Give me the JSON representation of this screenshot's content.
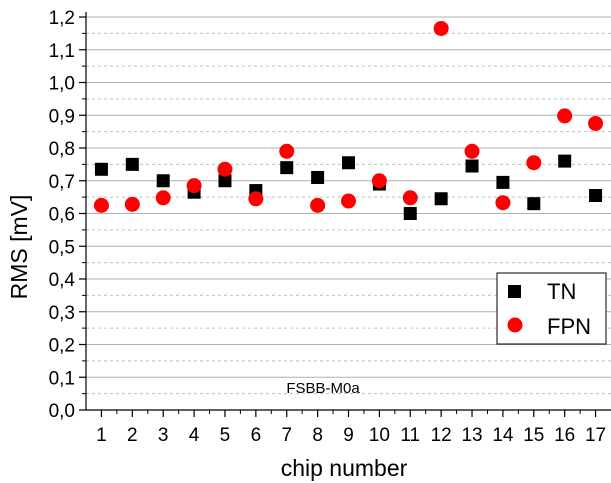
{
  "chart_data": {
    "type": "scatter",
    "x": [
      1,
      2,
      3,
      4,
      5,
      6,
      7,
      8,
      9,
      10,
      11,
      12,
      13,
      14,
      15,
      16,
      17
    ],
    "xlabel": "chip number",
    "ylabel": "RMS [mV]",
    "xlim": [
      0.5,
      17.5
    ],
    "ylim": [
      0.0,
      1.2
    ],
    "y_ticks": [
      "0,0",
      "0,1",
      "0,2",
      "0,3",
      "0,4",
      "0,5",
      "0,6",
      "0,7",
      "0,8",
      "0,9",
      "1,0",
      "1,1",
      "1,2"
    ],
    "x_ticks": [
      "1",
      "2",
      "3",
      "4",
      "5",
      "6",
      "7",
      "8",
      "9",
      "10",
      "11",
      "12",
      "13",
      "14",
      "15",
      "16",
      "17"
    ],
    "grid": true,
    "legend_position": "bottom-right",
    "annotation": "FSBB-M0a",
    "series": [
      {
        "name": "TN",
        "marker": "square",
        "color": "#000000",
        "values": [
          0.735,
          0.75,
          0.7,
          0.665,
          0.7,
          0.67,
          0.74,
          0.71,
          0.755,
          0.69,
          0.6,
          0.645,
          0.745,
          0.695,
          0.63,
          0.76,
          0.655
        ]
      },
      {
        "name": "FPN",
        "marker": "circle",
        "color": "#ff0000",
        "values": [
          0.625,
          0.628,
          0.648,
          0.685,
          0.735,
          0.645,
          0.79,
          0.625,
          0.638,
          0.7,
          0.648,
          1.165,
          0.79,
          0.633,
          0.755,
          0.898,
          0.875
        ]
      }
    ]
  }
}
